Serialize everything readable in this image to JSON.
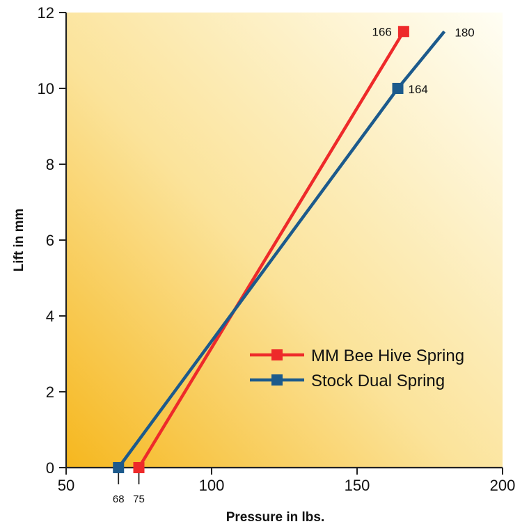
{
  "chart_data": {
    "type": "line",
    "title": "",
    "xlabel": "Pressure in lbs.",
    "ylabel": "Lift in mm",
    "xlim": [
      50,
      200
    ],
    "ylim": [
      0,
      12
    ],
    "x_ticks": [
      50,
      100,
      150,
      200
    ],
    "y_ticks": [
      0,
      2,
      4,
      6,
      8,
      10,
      12
    ],
    "x_tick_labels": [
      "50",
      "100",
      "150",
      "200"
    ],
    "y_tick_labels": [
      "0",
      "2",
      "4",
      "6",
      "8",
      "10",
      "12"
    ],
    "extra_x_markers": [
      {
        "value": 68,
        "label": "68"
      },
      {
        "value": 75,
        "label": "75"
      }
    ],
    "grid": false,
    "legend_position": "lower-right",
    "background": "yellow-orange gradient",
    "series": [
      {
        "name": "MM Bee Hive Spring",
        "color": "#ee2a2a",
        "points": [
          {
            "x": 75,
            "y": 0,
            "marker": true
          },
          {
            "x": 166,
            "y": 11.5,
            "marker": true,
            "label": "166"
          }
        ]
      },
      {
        "name": "Stock Dual Spring",
        "color": "#1c5a8c",
        "points": [
          {
            "x": 68,
            "y": 0,
            "marker": true
          },
          {
            "x": 164,
            "y": 10,
            "marker": true,
            "label": "164"
          },
          {
            "x": 180,
            "y": 11.5,
            "marker": false,
            "label": "180"
          }
        ]
      }
    ]
  }
}
